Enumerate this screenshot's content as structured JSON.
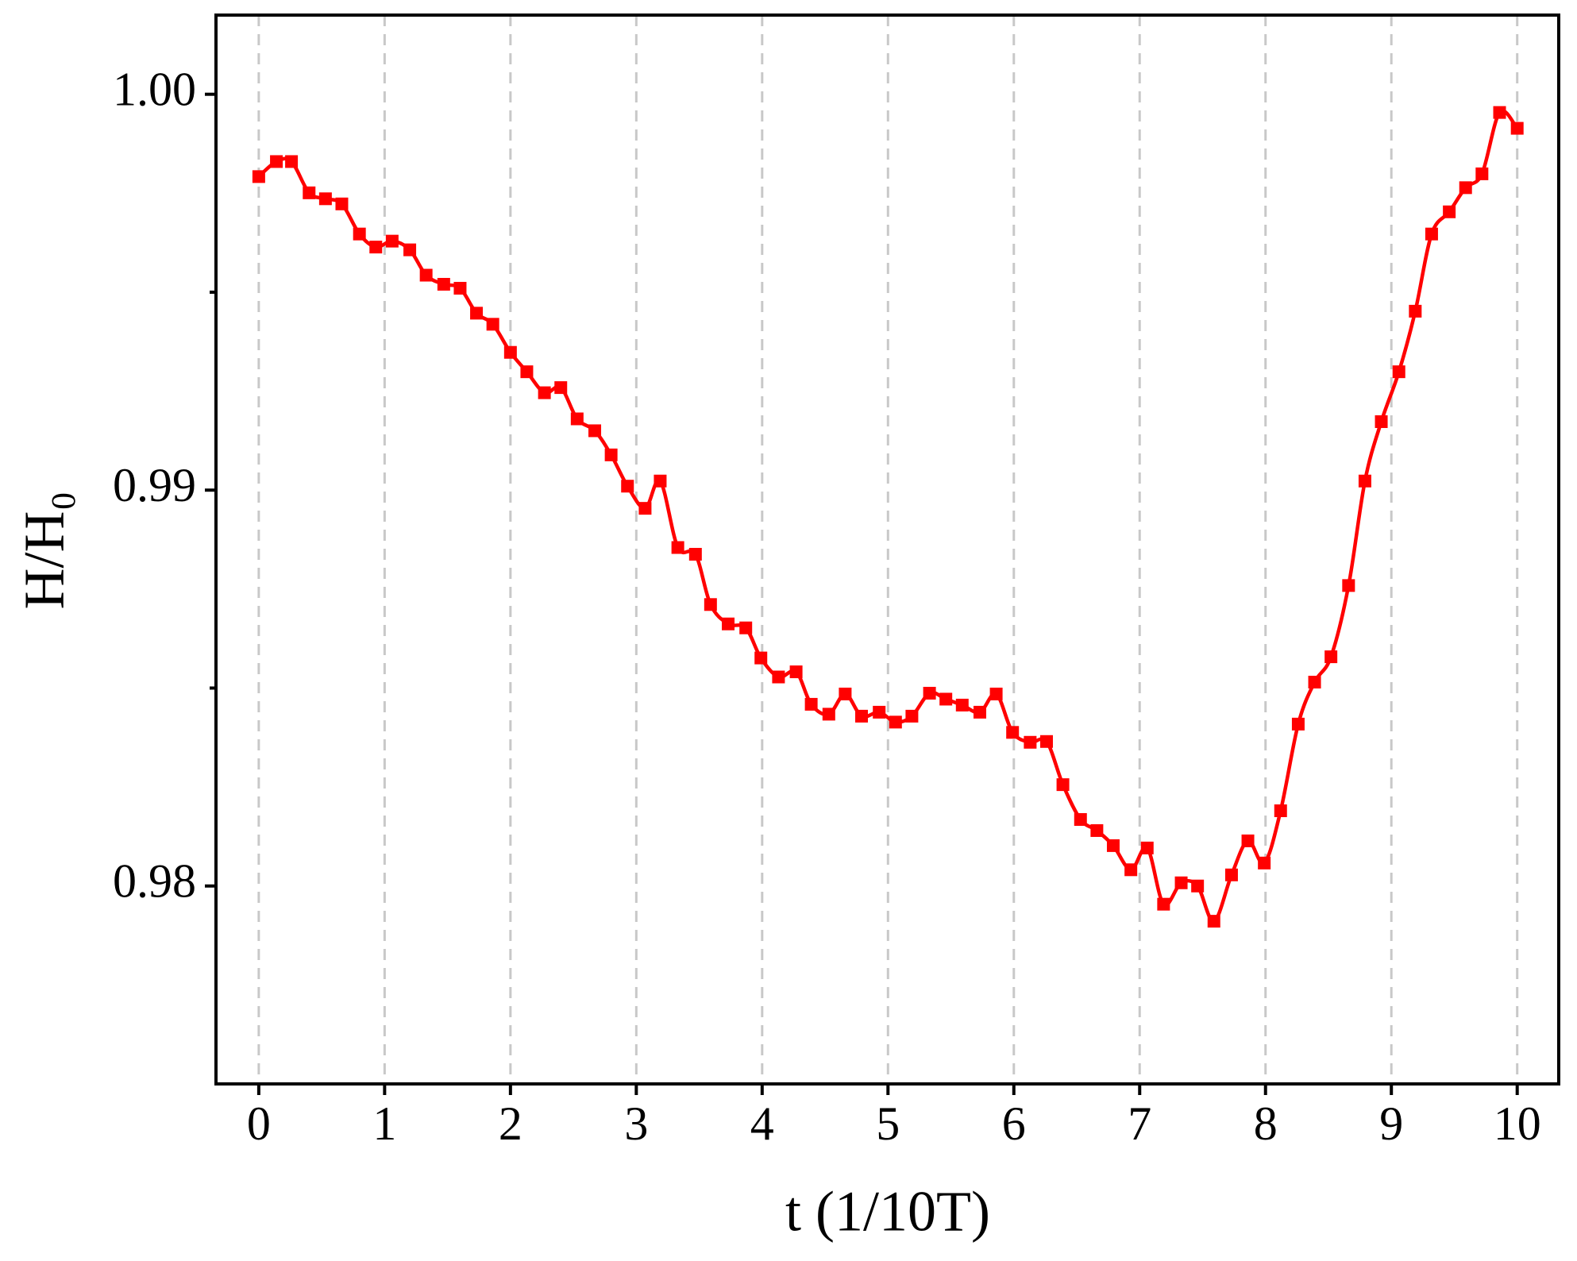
{
  "chart_data": {
    "type": "line",
    "xlabel": "t (1/10T)",
    "ylabel": "H/H₀",
    "xlim": [
      -0.34,
      10.33
    ],
    "ylim": [
      0.975,
      1.002
    ],
    "xticks": [
      0,
      1,
      2,
      3,
      4,
      5,
      6,
      7,
      8,
      9,
      10
    ],
    "yticks": [
      0.98,
      0.99,
      {
        "value": 1,
        "label": "1.00"
      }
    ],
    "yminor": [
      0.985,
      0.995
    ],
    "grid": "x",
    "series": [
      {
        "color": "#ff0000",
        "marker": "square",
        "x": [
          0,
          0.14,
          0.26,
          0.4,
          0.53,
          0.66,
          0.8,
          0.93,
          1.06,
          1.2,
          1.33,
          1.47,
          1.6,
          1.73,
          1.86,
          2,
          2.13,
          2.27,
          2.4,
          2.53,
          2.67,
          2.8,
          2.93,
          3.07,
          3.19,
          3.33,
          3.47,
          3.59,
          3.73,
          3.87,
          3.99,
          4.13,
          4.27,
          4.39,
          4.53,
          4.66,
          4.79,
          4.93,
          5.06,
          5.19,
          5.33,
          5.46,
          5.59,
          5.73,
          5.86,
          5.99,
          6.13,
          6.26,
          6.39,
          6.53,
          6.66,
          6.79,
          6.93,
          7.06,
          7.19,
          7.33,
          7.46,
          7.59,
          7.73,
          7.86,
          7.99,
          8.12,
          8.26,
          8.39,
          8.52,
          8.66,
          8.79,
          8.92,
          9.06,
          9.19,
          9.32,
          9.46,
          9.59,
          9.72,
          9.86,
          10
        ],
        "values": [
          0.99792,
          0.9983,
          0.9983,
          0.99751,
          0.99736,
          0.99723,
          0.99647,
          0.99614,
          0.99629,
          0.99607,
          0.99543,
          0.9952,
          0.9951,
          0.99447,
          0.99419,
          0.99348,
          0.99299,
          0.99246,
          0.99259,
          0.9918,
          0.9915,
          0.99089,
          0.9901,
          0.98954,
          0.99023,
          0.98855,
          0.98838,
          0.98711,
          0.98662,
          0.98652,
          0.98576,
          0.98528,
          0.98541,
          0.98459,
          0.98434,
          0.98485,
          0.98429,
          0.98439,
          0.98414,
          0.98429,
          0.98487,
          0.98472,
          0.98457,
          0.98439,
          0.98485,
          0.98388,
          0.98363,
          0.98365,
          0.98256,
          0.98168,
          0.9814,
          0.98102,
          0.98041,
          0.98096,
          0.97954,
          0.98008,
          0.98,
          0.97911,
          0.98028,
          0.98114,
          0.98058,
          0.9819,
          0.98409,
          0.98515,
          0.98579,
          0.98759,
          0.99023,
          0.99173,
          0.99299,
          0.99452,
          0.99647,
          0.99703,
          0.99764,
          0.99799,
          0.99954,
          0.99914
        ]
      }
    ]
  }
}
